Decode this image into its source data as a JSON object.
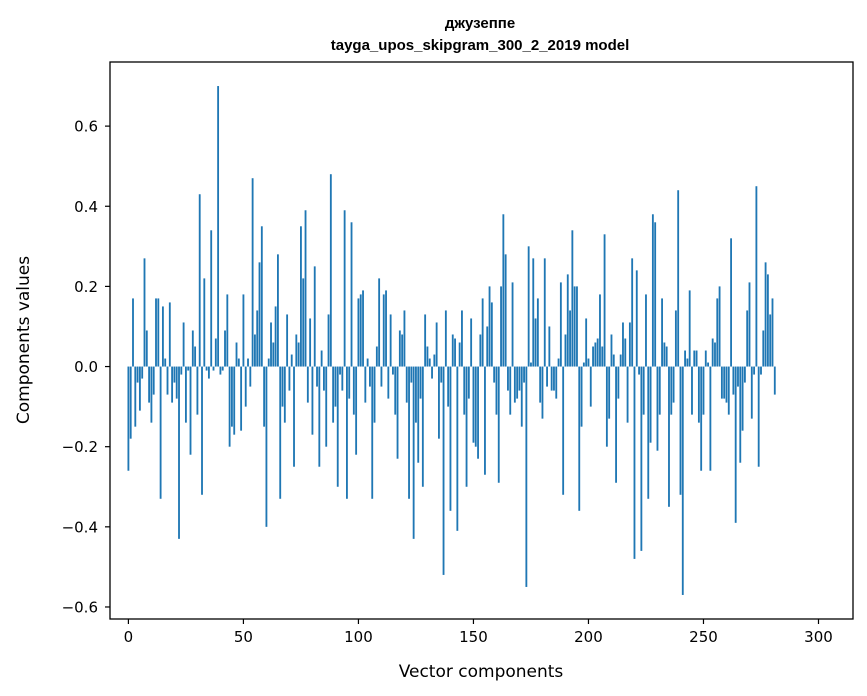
{
  "chart_data": {
    "type": "bar",
    "title": "джузеппе",
    "subtitle": "tayga_upos_skipgram_300_2_2019 model",
    "xlabel": "Vector components",
    "ylabel": "Components values",
    "xlim": [
      -8,
      315
    ],
    "ylim": [
      -0.63,
      0.76
    ],
    "xticks": [
      0,
      50,
      100,
      150,
      200,
      250,
      300
    ],
    "yticks": [
      -0.6,
      -0.4,
      -0.2,
      0.0,
      0.2,
      0.4,
      0.6
    ],
    "ytick_labels": [
      "−0.6",
      "−0.4",
      "−0.2",
      "0.0",
      "0.2",
      "0.4",
      "0.6"
    ],
    "color": "#1f77b4",
    "values": [
      -0.26,
      -0.18,
      0.17,
      -0.15,
      -0.04,
      -0.11,
      -0.03,
      0.27,
      0.09,
      -0.09,
      -0.14,
      -0.07,
      0.17,
      0.17,
      -0.33,
      0.15,
      0.02,
      -0.07,
      0.16,
      -0.09,
      -0.04,
      -0.08,
      -0.43,
      -0.02,
      0.11,
      -0.14,
      -0.01,
      -0.22,
      0.09,
      0.05,
      -0.12,
      0.43,
      -0.32,
      0.22,
      -0.01,
      -0.03,
      0.34,
      -0.01,
      0.07,
      0.7,
      -0.02,
      -0.01,
      0.09,
      0.18,
      -0.2,
      -0.15,
      -0.17,
      0.06,
      0.02,
      -0.16,
      0.18,
      -0.1,
      0.02,
      -0.05,
      0.47,
      0.08,
      0.14,
      0.26,
      0.35,
      -0.15,
      -0.4,
      0.02,
      0.11,
      0.06,
      0.15,
      0.28,
      -0.33,
      -0.1,
      -0.14,
      0.13,
      -0.06,
      0.03,
      -0.25,
      0.08,
      0.06,
      0.35,
      0.22,
      0.39,
      -0.09,
      0.12,
      -0.17,
      0.25,
      -0.05,
      -0.25,
      0.04,
      -0.06,
      -0.2,
      0.13,
      0.48,
      -0.14,
      -0.1,
      -0.3,
      -0.02,
      -0.06,
      0.39,
      -0.33,
      -0.08,
      0.36,
      -0.12,
      -0.22,
      0.17,
      0.18,
      0.19,
      -0.09,
      0.02,
      -0.05,
      -0.33,
      -0.14,
      0.05,
      0.22,
      -0.05,
      0.18,
      0.19,
      -0.08,
      0.13,
      -0.02,
      -0.12,
      -0.23,
      0.09,
      0.08,
      0.14,
      -0.09,
      -0.33,
      -0.04,
      -0.43,
      -0.14,
      -0.24,
      -0.08,
      -0.3,
      0.13,
      0.05,
      0.02,
      -0.03,
      0.03,
      0.11,
      -0.18,
      -0.04,
      -0.52,
      0.14,
      -0.1,
      -0.36,
      0.08,
      0.07,
      -0.41,
      0.06,
      0.14,
      -0.12,
      -0.3,
      -0.08,
      0.12,
      -0.19,
      -0.2,
      -0.23,
      0.08,
      0.17,
      -0.27,
      0.1,
      0.2,
      0.16,
      -0.04,
      -0.12,
      -0.29,
      0.2,
      0.38,
      0.28,
      -0.06,
      -0.12,
      0.21,
      -0.09,
      -0.08,
      -0.06,
      -0.15,
      -0.04,
      -0.55,
      0.3,
      0.01,
      0.27,
      0.12,
      0.17,
      -0.09,
      -0.13,
      0.27,
      -0.05,
      0.1,
      -0.06,
      -0.06,
      -0.08,
      0.02,
      0.21,
      -0.32,
      0.08,
      0.23,
      0.14,
      0.34,
      0.2,
      0.2,
      -0.36,
      -0.15,
      0.01,
      0.12,
      0.02,
      -0.1,
      0.05,
      0.06,
      0.07,
      0.18,
      0.05,
      0.33,
      -0.2,
      -0.13,
      0.08,
      0.03,
      -0.29,
      -0.08,
      0.03,
      0.11,
      0.07,
      -0.14,
      0.11,
      0.27,
      -0.48,
      0.24,
      -0.02,
      -0.46,
      -0.12,
      0.18,
      -0.33,
      -0.19,
      0.38,
      0.36,
      -0.21,
      -0.12,
      0.17,
      0.06,
      0.05,
      -0.35,
      -0.12,
      -0.09,
      0.14,
      0.44,
      -0.32,
      -0.57,
      0.04,
      0.02,
      0.19,
      -0.12,
      0.04,
      0.04,
      -0.14,
      -0.26,
      -0.12,
      0.04,
      0.01,
      -0.26,
      0.07,
      0.06,
      0.17,
      0.2,
      -0.08,
      -0.08,
      -0.09,
      -0.12,
      0.32,
      -0.07,
      -0.39,
      -0.05,
      -0.24,
      -0.16,
      -0.04,
      0.14,
      0.21,
      -0.13,
      -0.02,
      0.45,
      -0.25,
      -0.02,
      0.09,
      0.26,
      0.23,
      0.13,
      0.17,
      -0.07
    ]
  }
}
